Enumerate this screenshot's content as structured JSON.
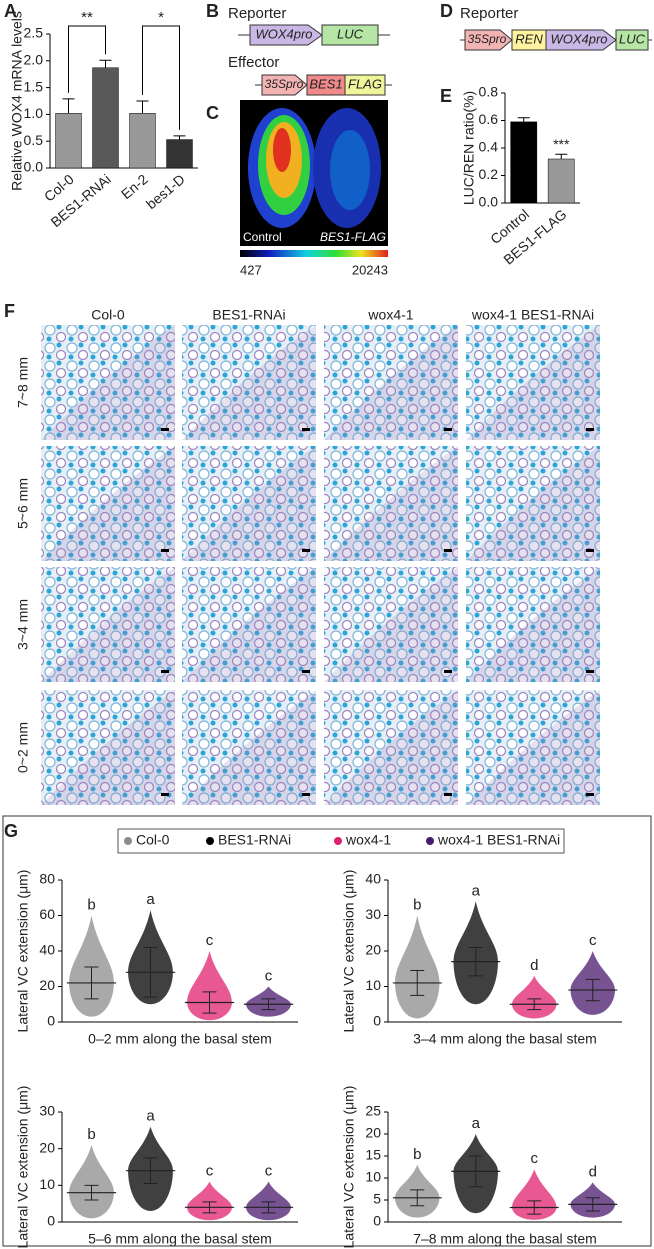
{
  "panel_labels": [
    "A",
    "B",
    "C",
    "D",
    "E",
    "F",
    "G"
  ],
  "diagram_b": {
    "reporter_label": "Reporter",
    "reporter": [
      "WOX4pro",
      "LUC"
    ],
    "effector_label": "Effector",
    "effector": [
      "35Spro",
      "BES1",
      "FLAG"
    ]
  },
  "diagram_d": {
    "reporter_label": "Reporter",
    "reporter": [
      "35Spro",
      "REN",
      "WOX4pro",
      "LUC"
    ]
  },
  "image_c": {
    "left_label": "Control",
    "right_label": "BES1-FLAG",
    "scale_min": 427,
    "scale_max": 20243
  },
  "micrographs": {
    "columns": [
      "Col-0",
      "BES1-RNAi",
      "wox4-1",
      "wox4-1 BES1-RNAi"
    ],
    "rows": [
      "7~8 mm",
      "5~6 mm",
      "3~4 mm",
      "0~2 mm"
    ]
  },
  "panel_g": {
    "legend": [
      {
        "name": "Col-0",
        "color": "#8c8c8c"
      },
      {
        "name": "BES1-RNAi",
        "color": "#000000"
      },
      {
        "name": "wox4-1",
        "color": "#e0206e"
      },
      {
        "name": "wox4-1 BES1-RNAi",
        "color": "#4a1a6e"
      }
    ]
  },
  "chart_data": [
    {
      "type": "bar",
      "ylabel": "Relative WOX4 mRNA levels",
      "categories": [
        "Col-0",
        "BES1-RNAi",
        "En-2",
        "bes1-D"
      ],
      "values": [
        1.02,
        1.87,
        1.02,
        0.53
      ],
      "errors": [
        0.27,
        0.14,
        0.23,
        0.07
      ],
      "colors": [
        "#999999",
        "#595959",
        "#999999",
        "#333333"
      ],
      "ylim": [
        0,
        2.5
      ],
      "yticks": [
        {
          "value": 0,
          "label": "0.0"
        },
        0.5,
        {
          "value": 1,
          "label": "1.0"
        },
        1.5,
        {
          "value": 2,
          "label": "2.0"
        },
        2.5
      ],
      "annotations": [
        "**",
        "*"
      ]
    },
    {
      "type": "bar",
      "ylabel": "LUC/REN ratio(%)",
      "categories": [
        "Control",
        "BES1-FLAG"
      ],
      "values": [
        0.59,
        0.32
      ],
      "errors": [
        0.03,
        0.035
      ],
      "colors": [
        "#000000",
        "#999999"
      ],
      "ylim": [
        0,
        0.8
      ],
      "yticks": [
        {
          "value": 0,
          "label": "0.0"
        },
        0.2,
        0.4,
        0.6,
        0.8
      ],
      "annotations": [
        "***"
      ]
    },
    {
      "type": "dot",
      "ylabel": "Lateral VC extension (μm)",
      "xlabel": "0–2 mm along the basal stem",
      "values": [
        22,
        28,
        11,
        10
      ],
      "errors": [
        9,
        14,
        6,
        3
      ],
      "ranges": [
        [
          3,
          60
        ],
        [
          10,
          63
        ],
        [
          1,
          40
        ],
        [
          3,
          20
        ]
      ],
      "letters": [
        "b",
        "a",
        "c",
        "c"
      ],
      "ylim": [
        0,
        80
      ],
      "yticks": [
        0,
        20,
        40,
        60,
        80
      ]
    },
    {
      "type": "dot",
      "ylabel": "Lateral VC extension (μm)",
      "xlabel": "3–4 mm along the basal stem",
      "values": [
        11,
        17,
        5,
        9
      ],
      "errors": [
        3.5,
        4,
        1.5,
        3
      ],
      "ranges": [
        [
          1,
          30
        ],
        [
          5,
          34
        ],
        [
          1,
          13
        ],
        [
          2,
          20
        ]
      ],
      "letters": [
        "b",
        "a",
        "d",
        "c"
      ],
      "ylim": [
        0,
        40
      ],
      "yticks": [
        0,
        10,
        20,
        30,
        40
      ]
    },
    {
      "type": "dot",
      "ylabel": "Lateral VC extension (μm)",
      "xlabel": "5–6 mm along the basal stem",
      "values": [
        8,
        14,
        4,
        4
      ],
      "errors": [
        2,
        3.5,
        1.5,
        1.5
      ],
      "ranges": [
        [
          1,
          21
        ],
        [
          3,
          26
        ],
        [
          0.5,
          11
        ],
        [
          0.5,
          11
        ]
      ],
      "letters": [
        "b",
        "a",
        "c",
        "c"
      ],
      "ylim": [
        0,
        30
      ],
      "yticks": [
        0,
        10,
        20,
        30
      ]
    },
    {
      "type": "dot",
      "ylabel": "Lateral VC extension (μm)",
      "xlabel": "7–8 mm along the basal stem",
      "values": [
        5.5,
        11.5,
        3.3,
        4
      ],
      "errors": [
        1.8,
        3.5,
        1.5,
        1.5
      ],
      "ranges": [
        [
          1,
          13
        ],
        [
          2,
          20
        ],
        [
          0.5,
          12
        ],
        [
          1,
          9
        ]
      ],
      "letters": [
        "b",
        "a",
        "c",
        "d"
      ],
      "ylim": [
        0,
        25
      ],
      "yticks": [
        0,
        5,
        10,
        15,
        20,
        25
      ]
    }
  ]
}
